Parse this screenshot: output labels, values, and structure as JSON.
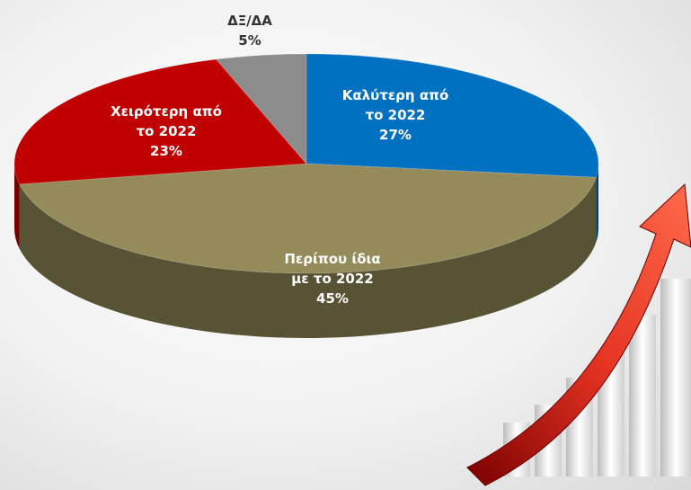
{
  "chart_data": {
    "type": "pie3d",
    "categories": [
      "Καλύτερη από\nτο 2022",
      "Περίπου ίδια\nμε το 2022",
      "Χειρότερη από\nτο 2022",
      "ΔΞ/ΔΑ"
    ],
    "values": [
      27,
      45,
      23,
      5
    ],
    "value_labels": [
      "27%",
      "45%",
      "23%",
      "5%"
    ],
    "colors": [
      "#0070c0",
      "#948a5a",
      "#c00000",
      "#8c8c8c"
    ]
  }
}
